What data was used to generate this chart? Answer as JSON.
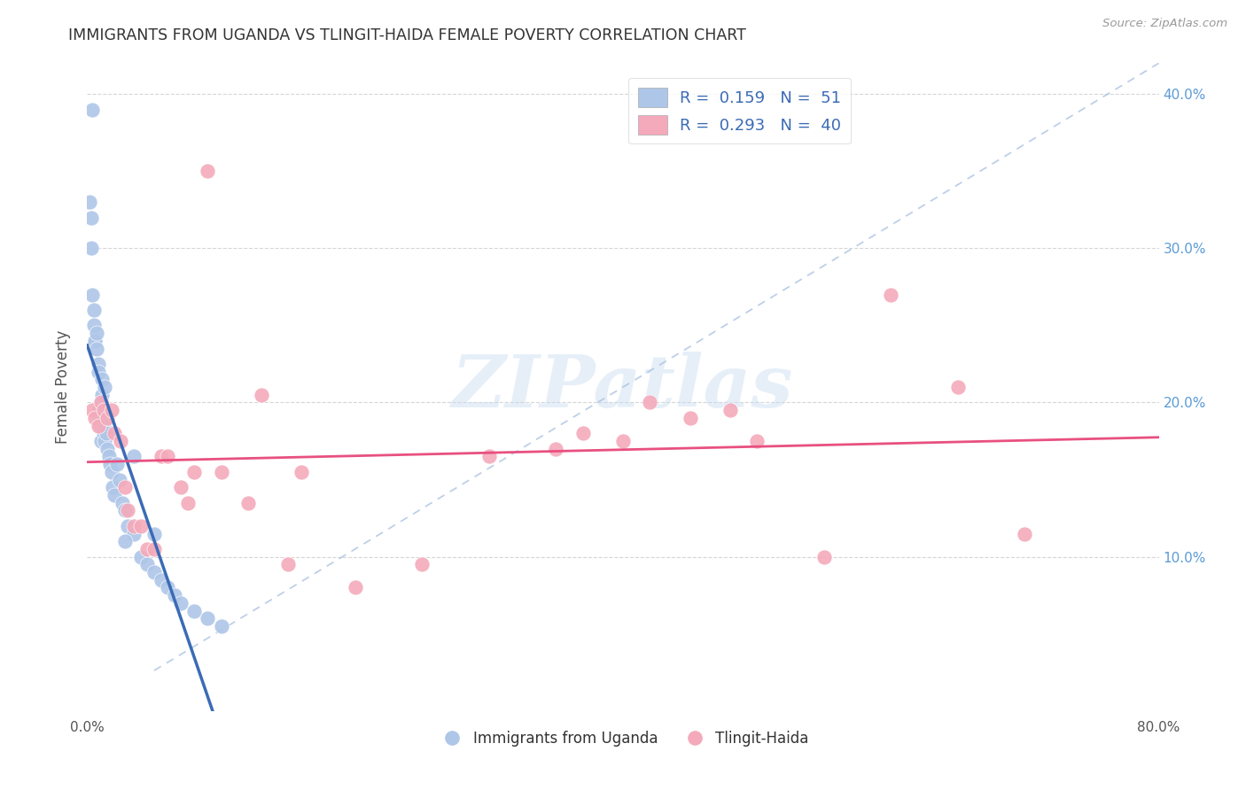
{
  "title": "IMMIGRANTS FROM UGANDA VS TLINGIT-HAIDA FEMALE POVERTY CORRELATION CHART",
  "source": "Source: ZipAtlas.com",
  "ylabel": "Female Poverty",
  "legend_label1": "Immigrants from Uganda",
  "legend_label2": "Tlingit-Haida",
  "R1": 0.159,
  "N1": 51,
  "R2": 0.293,
  "N2": 40,
  "xlim": [
    0,
    0.8
  ],
  "ylim": [
    0,
    0.42
  ],
  "color_blue": "#AEC6E8",
  "color_pink": "#F4AABB",
  "trend_blue": "#3B6BB5",
  "trend_pink": "#E85080",
  "bg_color": "#FFFFFF",
  "blue_x": [
    0.004,
    0.002,
    0.003,
    0.003,
    0.004,
    0.005,
    0.005,
    0.006,
    0.006,
    0.007,
    0.007,
    0.008,
    0.008,
    0.009,
    0.009,
    0.01,
    0.01,
    0.01,
    0.011,
    0.011,
    0.011,
    0.012,
    0.012,
    0.013,
    0.013,
    0.014,
    0.015,
    0.016,
    0.017,
    0.018,
    0.019,
    0.02,
    0.022,
    0.024,
    0.026,
    0.028,
    0.03,
    0.035,
    0.04,
    0.045,
    0.05,
    0.055,
    0.06,
    0.065,
    0.07,
    0.08,
    0.09,
    0.1,
    0.05,
    0.035,
    0.028
  ],
  "blue_y": [
    0.39,
    0.33,
    0.32,
    0.3,
    0.27,
    0.26,
    0.25,
    0.24,
    0.24,
    0.245,
    0.235,
    0.225,
    0.22,
    0.195,
    0.19,
    0.175,
    0.2,
    0.185,
    0.215,
    0.205,
    0.195,
    0.185,
    0.18,
    0.175,
    0.21,
    0.18,
    0.17,
    0.165,
    0.16,
    0.155,
    0.145,
    0.14,
    0.16,
    0.15,
    0.135,
    0.13,
    0.12,
    0.115,
    0.1,
    0.095,
    0.09,
    0.085,
    0.08,
    0.075,
    0.07,
    0.065,
    0.06,
    0.055,
    0.115,
    0.165,
    0.11
  ],
  "pink_x": [
    0.004,
    0.006,
    0.008,
    0.01,
    0.012,
    0.015,
    0.018,
    0.02,
    0.025,
    0.028,
    0.03,
    0.035,
    0.04,
    0.045,
    0.05,
    0.055,
    0.06,
    0.07,
    0.075,
    0.08,
    0.09,
    0.1,
    0.12,
    0.13,
    0.15,
    0.16,
    0.2,
    0.25,
    0.3,
    0.35,
    0.37,
    0.4,
    0.42,
    0.45,
    0.48,
    0.5,
    0.55,
    0.6,
    0.65,
    0.7
  ],
  "pink_y": [
    0.195,
    0.19,
    0.185,
    0.2,
    0.195,
    0.19,
    0.195,
    0.18,
    0.175,
    0.145,
    0.13,
    0.12,
    0.12,
    0.105,
    0.105,
    0.165,
    0.165,
    0.145,
    0.135,
    0.155,
    0.35,
    0.155,
    0.135,
    0.205,
    0.095,
    0.155,
    0.08,
    0.095,
    0.165,
    0.17,
    0.18,
    0.175,
    0.2,
    0.19,
    0.195,
    0.175,
    0.1,
    0.27,
    0.21,
    0.115
  ],
  "ytick_vals": [
    0.1,
    0.2,
    0.3,
    0.4
  ],
  "xtick_positions": [
    0.0,
    0.1,
    0.2,
    0.3,
    0.4,
    0.5,
    0.6,
    0.7,
    0.8
  ]
}
